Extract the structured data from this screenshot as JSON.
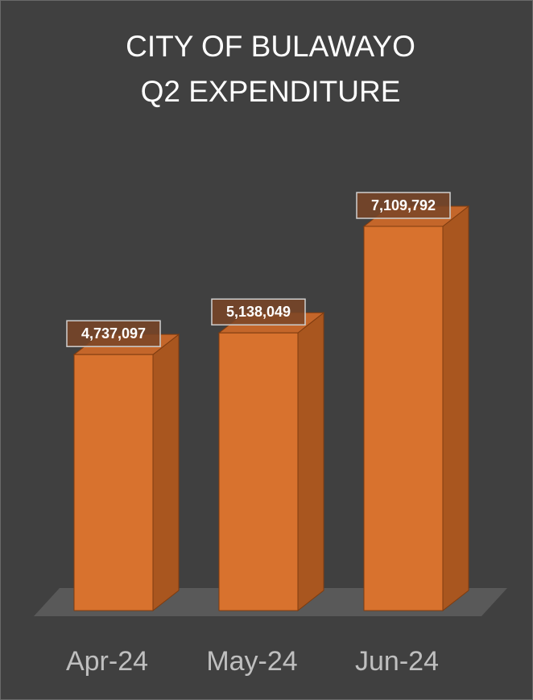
{
  "chart_data": {
    "type": "bar3d",
    "title": [
      "CITY OF BULAWAYO",
      "Q2 EXPENDITURE"
    ],
    "categories": [
      "Apr-24",
      "May-24",
      "Jun-24"
    ],
    "values": [
      4737097,
      5138049,
      7109792
    ],
    "value_labels": [
      "4,737,097",
      "5,138,049",
      "7,109,792"
    ],
    "color": "#d8722e"
  }
}
